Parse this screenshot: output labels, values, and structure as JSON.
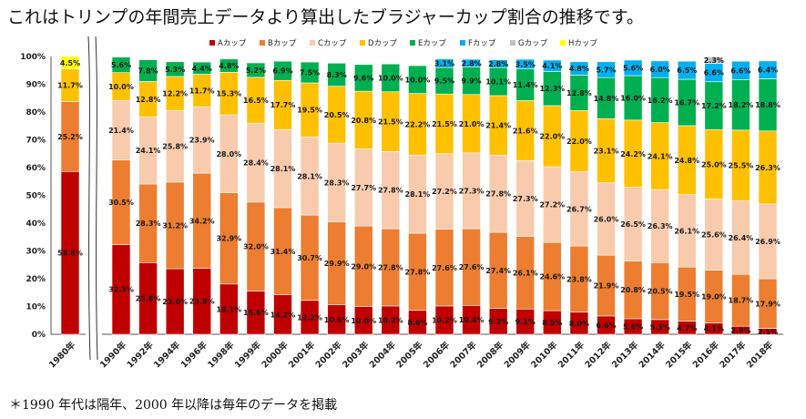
{
  "title": "これはトリンプの年間売上データより算出したブラジャーカップ割合の推移です。",
  "footnote": "＊1990 年代は隔年、2000 年以降は毎年のデータを掲載",
  "chart_data": {
    "type": "bar",
    "stacked": true,
    "grid": false,
    "legend_position": "top",
    "ylim": [
      0,
      100
    ],
    "y_ticks": [
      "0%",
      "10%",
      "20%",
      "30%",
      "40%",
      "50%",
      "60%",
      "70%",
      "80%",
      "90%",
      "100%"
    ],
    "axis_break_after": "1980年",
    "categories": [
      "1980年",
      "1990年",
      "1992年",
      "1994年",
      "1996年",
      "1998年",
      "1999年",
      "2000年",
      "2001年",
      "2002年",
      "2003年",
      "2004年",
      "2005年",
      "2006年",
      "2007年",
      "2008年",
      "2009年",
      "2010年",
      "2011年",
      "2012年",
      "2013年",
      "2014年",
      "2015年",
      "2016年",
      "2017年",
      "2018年"
    ],
    "series": [
      {
        "name": "Aカップ",
        "color": "#c00000",
        "values": [
          58.6,
          32.3,
          25.8,
          23.6,
          23.8,
          18.1,
          15.6,
          14.2,
          12.2,
          10.6,
          10.0,
          10.2,
          8.6,
          10.2,
          10.4,
          9.3,
          9.1,
          8.5,
          8.0,
          6.6,
          5.6,
          5.3,
          4.7,
          4.1,
          2.9,
          2.1
        ]
      },
      {
        "name": "Bカップ",
        "color": "#ed7d31",
        "values": [
          25.2,
          30.5,
          28.3,
          31.2,
          34.2,
          32.9,
          32.0,
          31.4,
          30.7,
          29.9,
          29.0,
          27.8,
          27.8,
          27.6,
          27.6,
          27.4,
          26.1,
          24.6,
          23.8,
          21.9,
          20.8,
          20.5,
          19.5,
          19.0,
          18.7,
          17.9
        ]
      },
      {
        "name": "Cカップ",
        "color": "#f8cbad",
        "values": [
          0,
          21.4,
          24.1,
          25.8,
          23.9,
          28.0,
          28.4,
          28.1,
          28.1,
          28.3,
          27.7,
          27.8,
          28.1,
          27.2,
          27.3,
          27.8,
          27.3,
          27.2,
          26.7,
          26.0,
          26.5,
          26.3,
          26.1,
          25.6,
          26.4,
          26.9
        ]
      },
      {
        "name": "Dカップ",
        "color": "#ffc000",
        "values": [
          11.7,
          10.0,
          12.8,
          12.2,
          11.7,
          15.3,
          16.5,
          17.7,
          19.5,
          20.5,
          20.8,
          21.5,
          22.2,
          21.5,
          21.0,
          21.4,
          21.6,
          22.0,
          22.0,
          23.1,
          24.2,
          24.1,
          24.8,
          25.0,
          25.5,
          26.3
        ]
      },
      {
        "name": "Eカップ",
        "color": "#00b050",
        "values": [
          0,
          5.6,
          7.8,
          5.3,
          4.4,
          4.8,
          5.2,
          6.9,
          7.5,
          8.3,
          9.6,
          10.0,
          10.0,
          9.5,
          9.9,
          10.1,
          11.4,
          12.3,
          12.8,
          14.8,
          16.0,
          16.2,
          16.7,
          17.2,
          18.2,
          18.8
        ]
      },
      {
        "name": "Fカップ",
        "color": "#00b0f0",
        "values": [
          0,
          0,
          0,
          0,
          0,
          0,
          0,
          0,
          0,
          0,
          0,
          0,
          0,
          3.1,
          2.8,
          2.8,
          3.5,
          4.1,
          4.8,
          5.7,
          5.6,
          6.0,
          6.5,
          6.6,
          6.6,
          6.4
        ]
      },
      {
        "name": "Gカップ",
        "color": "#bfbfbf",
        "values": [
          0,
          0,
          0,
          0,
          0,
          0,
          0,
          0,
          0,
          0,
          0,
          0,
          0,
          0,
          0,
          0,
          0,
          0,
          0,
          0,
          0,
          0,
          0,
          2.3,
          0,
          0
        ]
      },
      {
        "name": "Hカップ",
        "color": "#ffff00",
        "values": [
          4.5,
          0,
          0,
          0,
          0,
          0,
          0,
          0,
          0,
          0,
          0,
          0,
          0,
          0,
          0,
          0,
          0,
          0,
          0,
          0,
          0,
          0,
          0,
          0,
          0,
          0
        ]
      }
    ]
  }
}
